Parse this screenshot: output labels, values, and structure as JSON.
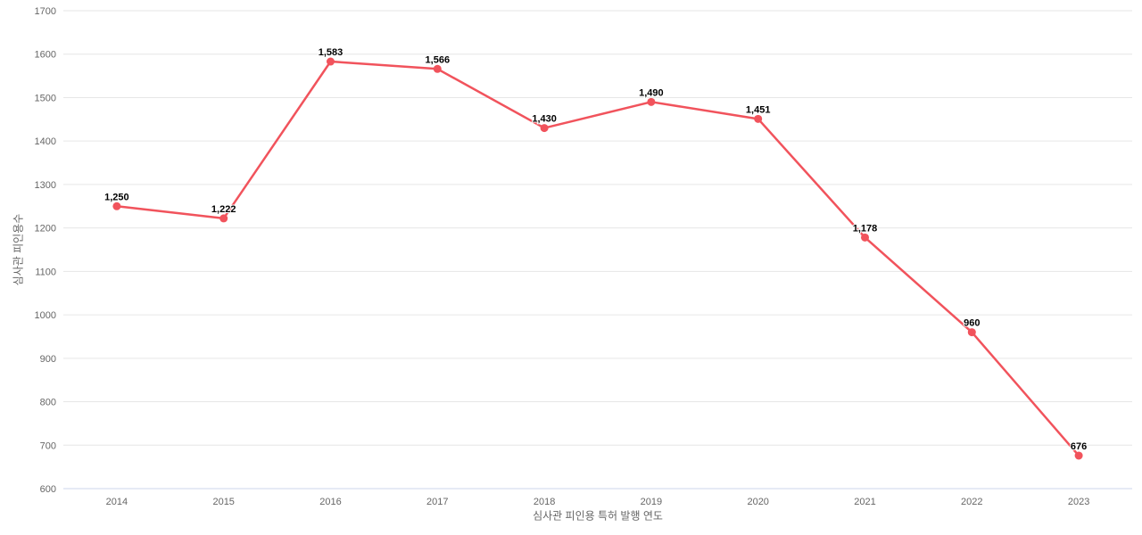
{
  "chart_data": {
    "type": "line",
    "categories": [
      "2014",
      "2015",
      "2016",
      "2017",
      "2018",
      "2019",
      "2020",
      "2021",
      "2022",
      "2023"
    ],
    "values": [
      1250,
      1222,
      1583,
      1566,
      1430,
      1490,
      1451,
      1178,
      960,
      676
    ],
    "point_labels": [
      "1,250",
      "1,222",
      "1,583",
      "1,566",
      "1,430",
      "1,490",
      "1,451",
      "1,178",
      "960",
      "676"
    ],
    "title": "",
    "xlabel": "심사관 피인용 특허 발행 연도",
    "ylabel": "심사관 피인용수",
    "ylim": [
      600,
      1700
    ],
    "yticks": [
      600,
      700,
      800,
      900,
      1000,
      1100,
      1200,
      1300,
      1400,
      1500,
      1600,
      1700
    ],
    "grid": "horizontal",
    "legend_position": "none",
    "marker": "circle"
  },
  "style": {
    "line_color": "#f1535c",
    "marker_color": "#f1535c",
    "grid_color": "#e6e6e6",
    "axis_line_color": "#ccd6eb",
    "tick_label_color": "#666666",
    "axis_title_color": "#666666",
    "data_label_color": "#000000",
    "background_color": "#ffffff"
  }
}
